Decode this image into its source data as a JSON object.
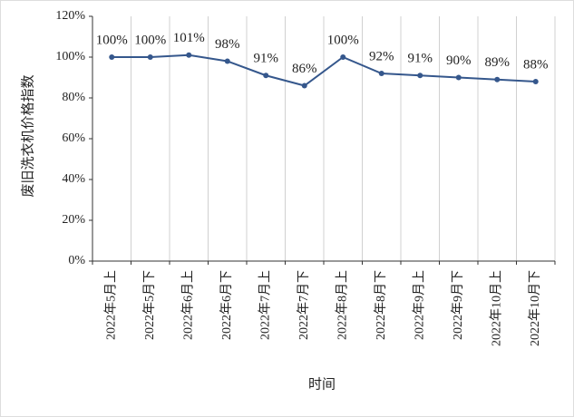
{
  "chart_data": {
    "type": "line",
    "y_label": "废旧洗衣机价格指数",
    "x_label": "时间",
    "categories": [
      "2022年5月上",
      "2022年5月下",
      "2022年6月上",
      "2022年6月下",
      "2022年7月上",
      "2022年7月下",
      "2022年8月上",
      "2022年8月下",
      "2022年9月上",
      "2022年9月下",
      "2022年10月上",
      "2022年10月下"
    ],
    "values": [
      100,
      100,
      101,
      98,
      91,
      86,
      100,
      92,
      91,
      90,
      89,
      88
    ],
    "value_labels": [
      "100%",
      "100%",
      "101%",
      "98%",
      "91%",
      "86%",
      "100%",
      "92%",
      "91%",
      "90%",
      "89%",
      "88%"
    ],
    "color": "#35578c",
    "ylim": [
      0,
      120
    ],
    "yticks": [
      {
        "value": 0,
        "label": "0%"
      },
      {
        "value": 20,
        "label": "20%"
      },
      {
        "value": 40,
        "label": "40%"
      },
      {
        "value": 60,
        "label": "60%"
      },
      {
        "value": 80,
        "label": "80%"
      },
      {
        "value": 100,
        "label": "100%"
      },
      {
        "value": 120,
        "label": "120%"
      }
    ],
    "grid": true
  }
}
